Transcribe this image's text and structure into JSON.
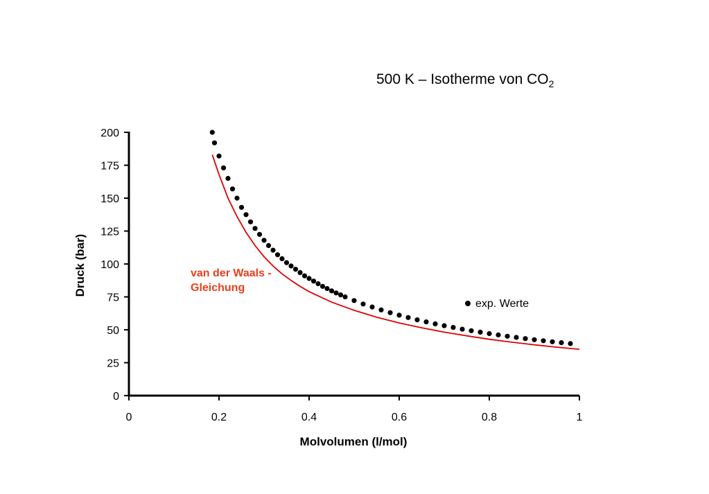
{
  "chart_data": {
    "type": "scatter",
    "title": "500 K – Isotherme von CO",
    "title_subscript": "2",
    "xlabel": "Molvolumen (l/mol)",
    "ylabel": "Druck (bar)",
    "xlim": [
      0,
      1
    ],
    "ylim": [
      0,
      200
    ],
    "x_ticks": [
      0,
      0.2,
      0.4,
      0.6,
      0.8,
      1
    ],
    "x_tick_labels": [
      "0",
      "0.2",
      "0.4",
      "0.6",
      "0.8",
      "1"
    ],
    "y_ticks": [
      0,
      25,
      50,
      75,
      100,
      125,
      150,
      175,
      200
    ],
    "y_tick_labels": [
      "0",
      "25",
      "50",
      "75",
      "100",
      "125",
      "150",
      "175",
      "200"
    ],
    "grid": false,
    "series": [
      {
        "name": "exp. Werte",
        "kind": "markers",
        "color": "#000000",
        "points": [
          [
            0.185,
            200
          ],
          [
            0.19,
            192
          ],
          [
            0.2,
            182
          ],
          [
            0.21,
            173
          ],
          [
            0.22,
            165
          ],
          [
            0.23,
            157
          ],
          [
            0.24,
            150
          ],
          [
            0.25,
            143
          ],
          [
            0.26,
            137.5
          ],
          [
            0.27,
            132
          ],
          [
            0.28,
            127
          ],
          [
            0.29,
            122.5
          ],
          [
            0.3,
            118
          ],
          [
            0.31,
            114
          ],
          [
            0.32,
            110.5
          ],
          [
            0.33,
            107
          ],
          [
            0.34,
            104
          ],
          [
            0.35,
            101
          ],
          [
            0.36,
            98.5
          ],
          [
            0.37,
            96
          ],
          [
            0.38,
            93.5
          ],
          [
            0.39,
            91
          ],
          [
            0.4,
            89
          ],
          [
            0.41,
            87
          ],
          [
            0.42,
            85
          ],
          [
            0.43,
            83
          ],
          [
            0.44,
            81.3
          ],
          [
            0.45,
            79.6
          ],
          [
            0.46,
            78
          ],
          [
            0.47,
            76.5
          ],
          [
            0.48,
            75
          ],
          [
            0.5,
            72.2
          ],
          [
            0.52,
            69.6
          ],
          [
            0.54,
            67.3
          ],
          [
            0.56,
            65.1
          ],
          [
            0.58,
            63
          ],
          [
            0.6,
            61.1
          ],
          [
            0.62,
            59.3
          ],
          [
            0.64,
            57.6
          ],
          [
            0.66,
            56
          ],
          [
            0.68,
            54.5
          ],
          [
            0.7,
            53.1
          ],
          [
            0.72,
            51.8
          ],
          [
            0.74,
            50.5
          ],
          [
            0.76,
            49.3
          ],
          [
            0.78,
            48.2
          ],
          [
            0.8,
            47.1
          ],
          [
            0.82,
            46.1
          ],
          [
            0.84,
            45.1
          ],
          [
            0.86,
            44.2
          ],
          [
            0.88,
            43.3
          ],
          [
            0.9,
            42.5
          ],
          [
            0.92,
            41.7
          ],
          [
            0.94,
            40.9
          ],
          [
            0.96,
            40.2
          ],
          [
            0.98,
            39.5
          ]
        ]
      },
      {
        "name": "van der Waals - Gleichung",
        "kind": "line",
        "color": "#e00000",
        "points": [
          [
            0.185,
            183
          ],
          [
            0.2,
            168
          ],
          [
            0.22,
            150
          ],
          [
            0.24,
            136
          ],
          [
            0.26,
            124
          ],
          [
            0.28,
            114
          ],
          [
            0.3,
            105.5
          ],
          [
            0.32,
            98.5
          ],
          [
            0.34,
            92.5
          ],
          [
            0.36,
            87.5
          ],
          [
            0.38,
            83
          ],
          [
            0.4,
            79
          ],
          [
            0.45,
            71
          ],
          [
            0.5,
            64.8
          ],
          [
            0.55,
            59.5
          ],
          [
            0.6,
            55.2
          ],
          [
            0.65,
            51.5
          ],
          [
            0.7,
            48.2
          ],
          [
            0.75,
            45.4
          ],
          [
            0.8,
            42.8
          ],
          [
            0.85,
            40.6
          ],
          [
            0.9,
            38.6
          ],
          [
            0.95,
            36.8
          ],
          [
            1.0,
            35.2
          ]
        ]
      }
    ],
    "annotations": [
      {
        "text_lines": [
          "van der Waals -",
          "Gleichung"
        ],
        "color": "#e8401c"
      },
      {
        "text": "exp. Werte",
        "marker": "dot"
      }
    ]
  }
}
